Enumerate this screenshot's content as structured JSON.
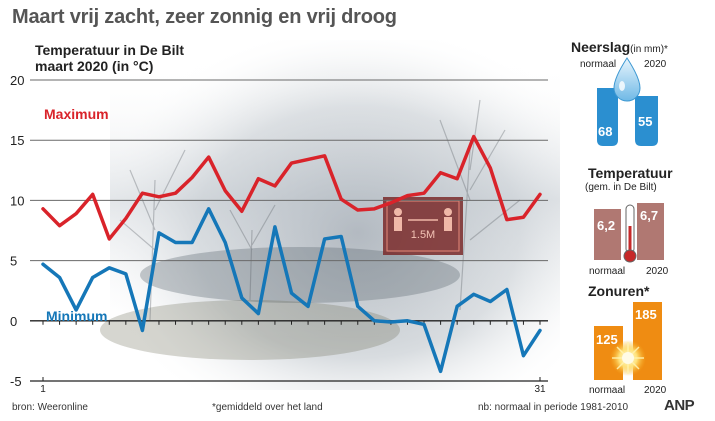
{
  "headline": "Maart vrij zacht, zeer zonnig en vrij droog",
  "chart_data": {
    "type": "line",
    "title": "Temperatuur in De Bilt\nmaart 2020 (in °C)",
    "ylim": [
      -5,
      20
    ],
    "yticks": [
      20,
      15,
      10,
      5,
      0,
      -5
    ],
    "xlim": [
      1,
      31
    ],
    "xtick_labels": [
      "1",
      "31"
    ],
    "grid": true,
    "series": [
      {
        "name": "Maximum",
        "color": "#d9232a",
        "x": [
          1,
          2,
          3,
          4,
          5,
          6,
          7,
          8,
          9,
          10,
          11,
          12,
          13,
          14,
          15,
          16,
          17,
          18,
          19,
          20,
          21,
          22,
          23,
          24,
          25,
          26,
          27,
          28,
          29,
          30,
          31
        ],
        "values": [
          9.3,
          7.9,
          8.9,
          10.5,
          6.8,
          8.5,
          10.6,
          10.3,
          10.6,
          11.9,
          13.6,
          10.8,
          9.1,
          11.8,
          11.2,
          13.1,
          13.4,
          13.7,
          10.1,
          9.2,
          9.3,
          9.8,
          10.4,
          10.6,
          12.3,
          11.8,
          15.3,
          12.7,
          8.4,
          8.6,
          10.5
        ]
      },
      {
        "name": "Minimum",
        "color": "#1577b8",
        "x": [
          1,
          2,
          3,
          4,
          5,
          6,
          7,
          8,
          9,
          10,
          11,
          12,
          13,
          14,
          15,
          16,
          17,
          18,
          19,
          20,
          21,
          22,
          23,
          24,
          25,
          26,
          27,
          28,
          29,
          30,
          31
        ],
        "values": [
          4.7,
          3.6,
          0.9,
          3.6,
          4.4,
          3.9,
          -0.8,
          7.3,
          6.5,
          6.5,
          9.3,
          6.5,
          1.9,
          0.6,
          7.8,
          2.3,
          1.2,
          6.8,
          7.0,
          1.2,
          0.0,
          -0.1,
          0.0,
          -0.3,
          -4.2,
          1.2,
          2.2,
          1.6,
          2.6,
          -2.9,
          -0.8
        ]
      }
    ]
  },
  "image_text": {
    "sign": "1.5M"
  },
  "side": {
    "neerslag": {
      "title": "Neerslag",
      "unit": "(in mm)*",
      "label_normaal": "normaal",
      "label_year": "2020",
      "normaal": 68,
      "current": 55,
      "color": "#2b8fd0"
    },
    "temperatuur": {
      "title": "Temperatuur",
      "sub": "(gem. in De Bilt)",
      "label_normaal": "normaal",
      "label_year": "2020",
      "normaal": "6,2",
      "current": "6,7",
      "color": "#b07872"
    },
    "zonuren": {
      "title": "Zonuren*",
      "label_normaal": "normaal",
      "label_year": "2020",
      "normaal": 125,
      "current": 185,
      "color": "#ef8c12"
    }
  },
  "footer": {
    "source": "bron: Weeronline",
    "note": "*gemiddeld over het land",
    "period": "nb: normaal in periode 1981-2010",
    "brand": "ANP"
  }
}
